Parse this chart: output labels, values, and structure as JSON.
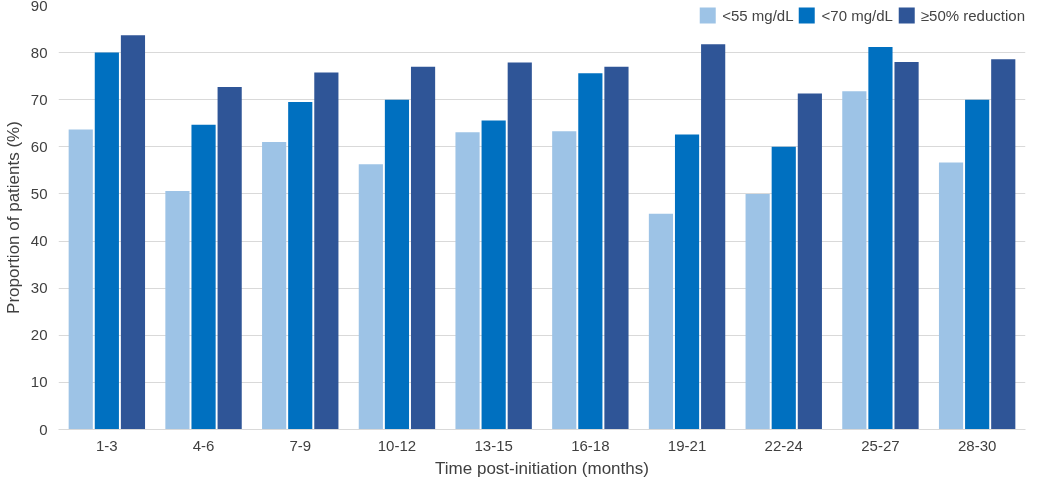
{
  "chart_data": {
    "type": "bar",
    "xlabel": "Time post-initiation (months)",
    "ylabel": "Proportion of patients (%)",
    "categories": [
      "1-3",
      "4-6",
      "7-9",
      "10-12",
      "13-15",
      "16-18",
      "19-21",
      "22-24",
      "25-27",
      "28-30"
    ],
    "series": [
      {
        "name": "<55 mg/dL",
        "color": "#9dc3e6",
        "values": [
          63.7,
          50.6,
          61,
          56.3,
          63.1,
          63.3,
          45.8,
          50,
          71.8,
          56.7
        ]
      },
      {
        "name": "<70 mg/dL",
        "color": "#0070c0",
        "values": [
          80,
          64.7,
          69.5,
          70,
          65.6,
          75.6,
          62.6,
          60,
          81.2,
          70
        ]
      },
      {
        "name": "≥50% reduction",
        "color": "#2f5597",
        "values": [
          83.7,
          72.7,
          75.8,
          77,
          77.9,
          77,
          81.8,
          71.3,
          78,
          78.6
        ]
      }
    ],
    "ylim": [
      0,
      90
    ],
    "yticks": [
      0,
      10,
      20,
      30,
      40,
      50,
      60,
      70,
      80,
      90
    ],
    "grid": "y",
    "legend": "top right"
  }
}
